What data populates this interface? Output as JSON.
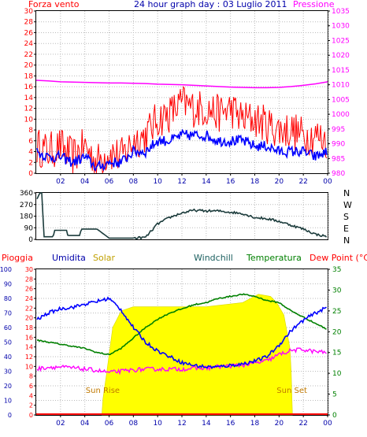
{
  "title": "24 hour graph day : 03 Luglio 2011",
  "colors": {
    "wind": "#ff0000",
    "gust": "#ff0000",
    "wind_avg": "#0000ff",
    "pressure": "#ff00ff",
    "direction": "#1c3c3c",
    "rain": "#ff0000",
    "humidity": "#0000ff",
    "solar": "#ffff00",
    "solar_edge": "#d8d800",
    "windchill": "#1c6060",
    "temperature": "#008000",
    "dewpoint": "#ff00ff",
    "left_axis_red": "#ff0000",
    "left_axis_blue": "#0000aa",
    "axis_green": "#008000",
    "sun_label": "#c07800",
    "grid": "#bbbbbb"
  },
  "chart_data": [
    {
      "type": "line",
      "name": "wind-pressure",
      "left_label": "Forza vento",
      "right_label": "Pressione",
      "x_ticks": [
        "02",
        "04",
        "06",
        "08",
        "10",
        "12",
        "14",
        "16",
        "18",
        "20",
        "22",
        "00"
      ],
      "y_left_ticks": [
        0,
        2,
        4,
        6,
        8,
        10,
        12,
        14,
        16,
        18,
        20,
        22,
        24,
        26,
        28,
        30
      ],
      "y_left_lim": [
        0,
        30
      ],
      "y_right_ticks": [
        980,
        985,
        990,
        995,
        1000,
        1005,
        1010,
        1015,
        1020,
        1025,
        1030,
        1035
      ],
      "y_right_lim": [
        980,
        1035
      ],
      "x_hours": [
        0,
        1,
        2,
        3,
        4,
        5,
        6,
        7,
        8,
        9,
        10,
        11,
        12,
        13,
        14,
        15,
        16,
        17,
        18,
        19,
        20,
        21,
        22,
        23,
        24
      ],
      "series": [
        {
          "key": "gust",
          "values": [
            5,
            4,
            5,
            3,
            5,
            2,
            4,
            3,
            6,
            7,
            10,
            11,
            13,
            12,
            12,
            11,
            12,
            10,
            10,
            9,
            8,
            8,
            7,
            7,
            6
          ],
          "spread": 3.0
        },
        {
          "key": "wind_avg",
          "values": [
            4,
            3,
            3,
            2,
            3,
            1,
            2,
            2,
            4,
            4,
            6,
            6,
            7,
            7,
            7,
            6,
            6,
            6,
            5,
            5,
            4,
            4,
            4,
            3,
            4
          ],
          "spread": 1.0
        },
        {
          "key": "pressure",
          "values": [
            1011.5,
            1011.3,
            1011,
            1010.9,
            1010.8,
            1010.7,
            1010.6,
            1010.6,
            1010.5,
            1010.4,
            1010.2,
            1010.1,
            1010,
            1009.8,
            1009.6,
            1009.4,
            1009.2,
            1009.1,
            1009,
            1009,
            1009.1,
            1009.4,
            1009.8,
            1010.3,
            1011
          ]
        }
      ]
    },
    {
      "type": "line",
      "name": "wind-direction",
      "y_left_ticks": [
        0,
        90,
        180,
        270,
        360
      ],
      "y_left_lim": [
        0,
        360
      ],
      "compass": [
        "N",
        "W",
        "S",
        "E",
        "N"
      ],
      "x_hours": [
        0,
        0.3,
        0.5,
        0.6,
        1,
        1.4,
        1.5,
        2.5,
        2.6,
        3.6,
        3.7,
        5,
        6,
        7,
        8,
        9,
        10,
        11,
        12,
        13,
        14,
        15,
        16,
        17,
        18,
        19,
        20,
        21,
        22,
        23,
        24
      ],
      "values": [
        300,
        360,
        360,
        20,
        20,
        20,
        70,
        70,
        30,
        30,
        80,
        80,
        10,
        10,
        10,
        15,
        120,
        170,
        205,
        225,
        220,
        220,
        210,
        200,
        170,
        160,
        140,
        110,
        80,
        40,
        20
      ]
    },
    {
      "type": "line",
      "name": "humidity-temperature",
      "labels": [
        "Pioggia",
        "Umidita",
        "Solar",
        "Windchill",
        "Temperatura",
        "Dew Point (°C)"
      ],
      "rain_ticks": [
        0,
        2,
        4,
        6,
        8,
        10,
        12,
        14,
        16,
        18,
        20,
        22,
        24,
        26,
        28,
        30
      ],
      "humidity_ticks": [
        0,
        10,
        20,
        30,
        40,
        50,
        60,
        70,
        80,
        90,
        100
      ],
      "temp_ticks": [
        0,
        5,
        10,
        15,
        20,
        25,
        30,
        35
      ],
      "temp_lim": [
        0,
        35
      ],
      "humidity_lim": [
        0,
        100
      ],
      "x_hours": [
        0,
        1,
        2,
        3,
        4,
        5,
        6,
        7,
        8,
        9,
        10,
        11,
        12,
        13,
        14,
        15,
        16,
        17,
        18,
        19,
        20,
        21,
        22,
        23,
        24
      ],
      "humidity": [
        65,
        70,
        73,
        74,
        76,
        78,
        80,
        72,
        60,
        50,
        44,
        40,
        36,
        34,
        33,
        33,
        34,
        35,
        37,
        40,
        48,
        58,
        65,
        70,
        74
      ],
      "temperature": [
        18,
        17.5,
        17,
        16.5,
        16,
        15,
        14.5,
        16,
        18.5,
        21,
        23,
        24.5,
        25.5,
        26.5,
        27,
        28,
        28.5,
        29,
        28.5,
        27.5,
        27,
        25,
        23.5,
        22,
        20.5
      ],
      "dewpoint": [
        11,
        11.5,
        11.5,
        11.3,
        11,
        10.7,
        10.2,
        10.5,
        10.8,
        11,
        11,
        11,
        11,
        11.2,
        11.3,
        11.6,
        11.8,
        12,
        12.4,
        13,
        14.5,
        15.5,
        15.7,
        15.2,
        15
      ],
      "solar_profile": [
        [
          5.4,
          0
        ],
        [
          5.5,
          4
        ],
        [
          5.8,
          10
        ],
        [
          6.3,
          21
        ],
        [
          7,
          25
        ],
        [
          8,
          26
        ],
        [
          9.5,
          26
        ],
        [
          11,
          26
        ],
        [
          13,
          26
        ],
        [
          14,
          26
        ],
        [
          15.5,
          26.5
        ],
        [
          17,
          27
        ],
        [
          18.3,
          29
        ],
        [
          19.3,
          28.5
        ],
        [
          19.8,
          27
        ],
        [
          20.4,
          24
        ],
        [
          20.9,
          16
        ],
        [
          21,
          10
        ],
        [
          21.1,
          0
        ]
      ],
      "sun_rise_hour": 5.5,
      "sun_set_hour": 21.1,
      "sun_rise_label": "Sun Rise",
      "sun_set_label": "Sun Set"
    }
  ]
}
